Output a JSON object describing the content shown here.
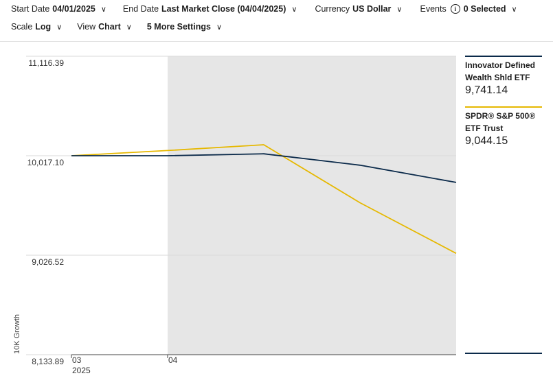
{
  "toolbar": {
    "start_date": {
      "label": "Start Date",
      "value": "04/01/2025"
    },
    "end_date": {
      "label": "End Date",
      "value": "Last Market Close (04/04/2025)"
    },
    "currency": {
      "label": "Currency",
      "value": "US Dollar"
    },
    "events": {
      "label": "Events",
      "value": "0 Selected"
    },
    "scale": {
      "label": "Scale",
      "value": "Log"
    },
    "view": {
      "label": "View",
      "value": "Chart"
    },
    "more_settings": {
      "label": "5 More Settings"
    }
  },
  "icons": {
    "dropdown": "chevron-down-icon",
    "info": "info-icon"
  },
  "colors": {
    "series1": "#0b2a4a",
    "series2": "#e6b800",
    "shade": "#e6e6e6",
    "grid": "#d9d9d9"
  },
  "chart_data": {
    "type": "line",
    "ylabel": "10K Growth",
    "y_scale": "log",
    "ylim": [
      8133.89,
      11116.39
    ],
    "y_ticks": [
      "11,116.39",
      "10,017.10",
      "9,026.52",
      "8,133.89"
    ],
    "y_tick_values": [
      11116.39,
      10017.1,
      9026.52,
      8133.89
    ],
    "x_ticks": [
      {
        "label": "03",
        "sublabel": "2025"
      },
      {
        "label": "04",
        "sublabel": ""
      }
    ],
    "x": [
      "03/31/2025",
      "04/01/2025",
      "04/02/2025",
      "04/03/2025",
      "04/04/2025"
    ],
    "shaded_from": "04/01/2025",
    "series": [
      {
        "name": "Innovator Defined Wealth Shld ETF",
        "last_value": "9,741.14",
        "values": [
          10017,
          10017,
          10037,
          9918,
          9741
        ]
      },
      {
        "name": "SPDR® S&P 500® ETF Trust",
        "last_value": "9,044.15",
        "values": [
          10017,
          10072,
          10133,
          9536,
          9044
        ]
      }
    ]
  }
}
